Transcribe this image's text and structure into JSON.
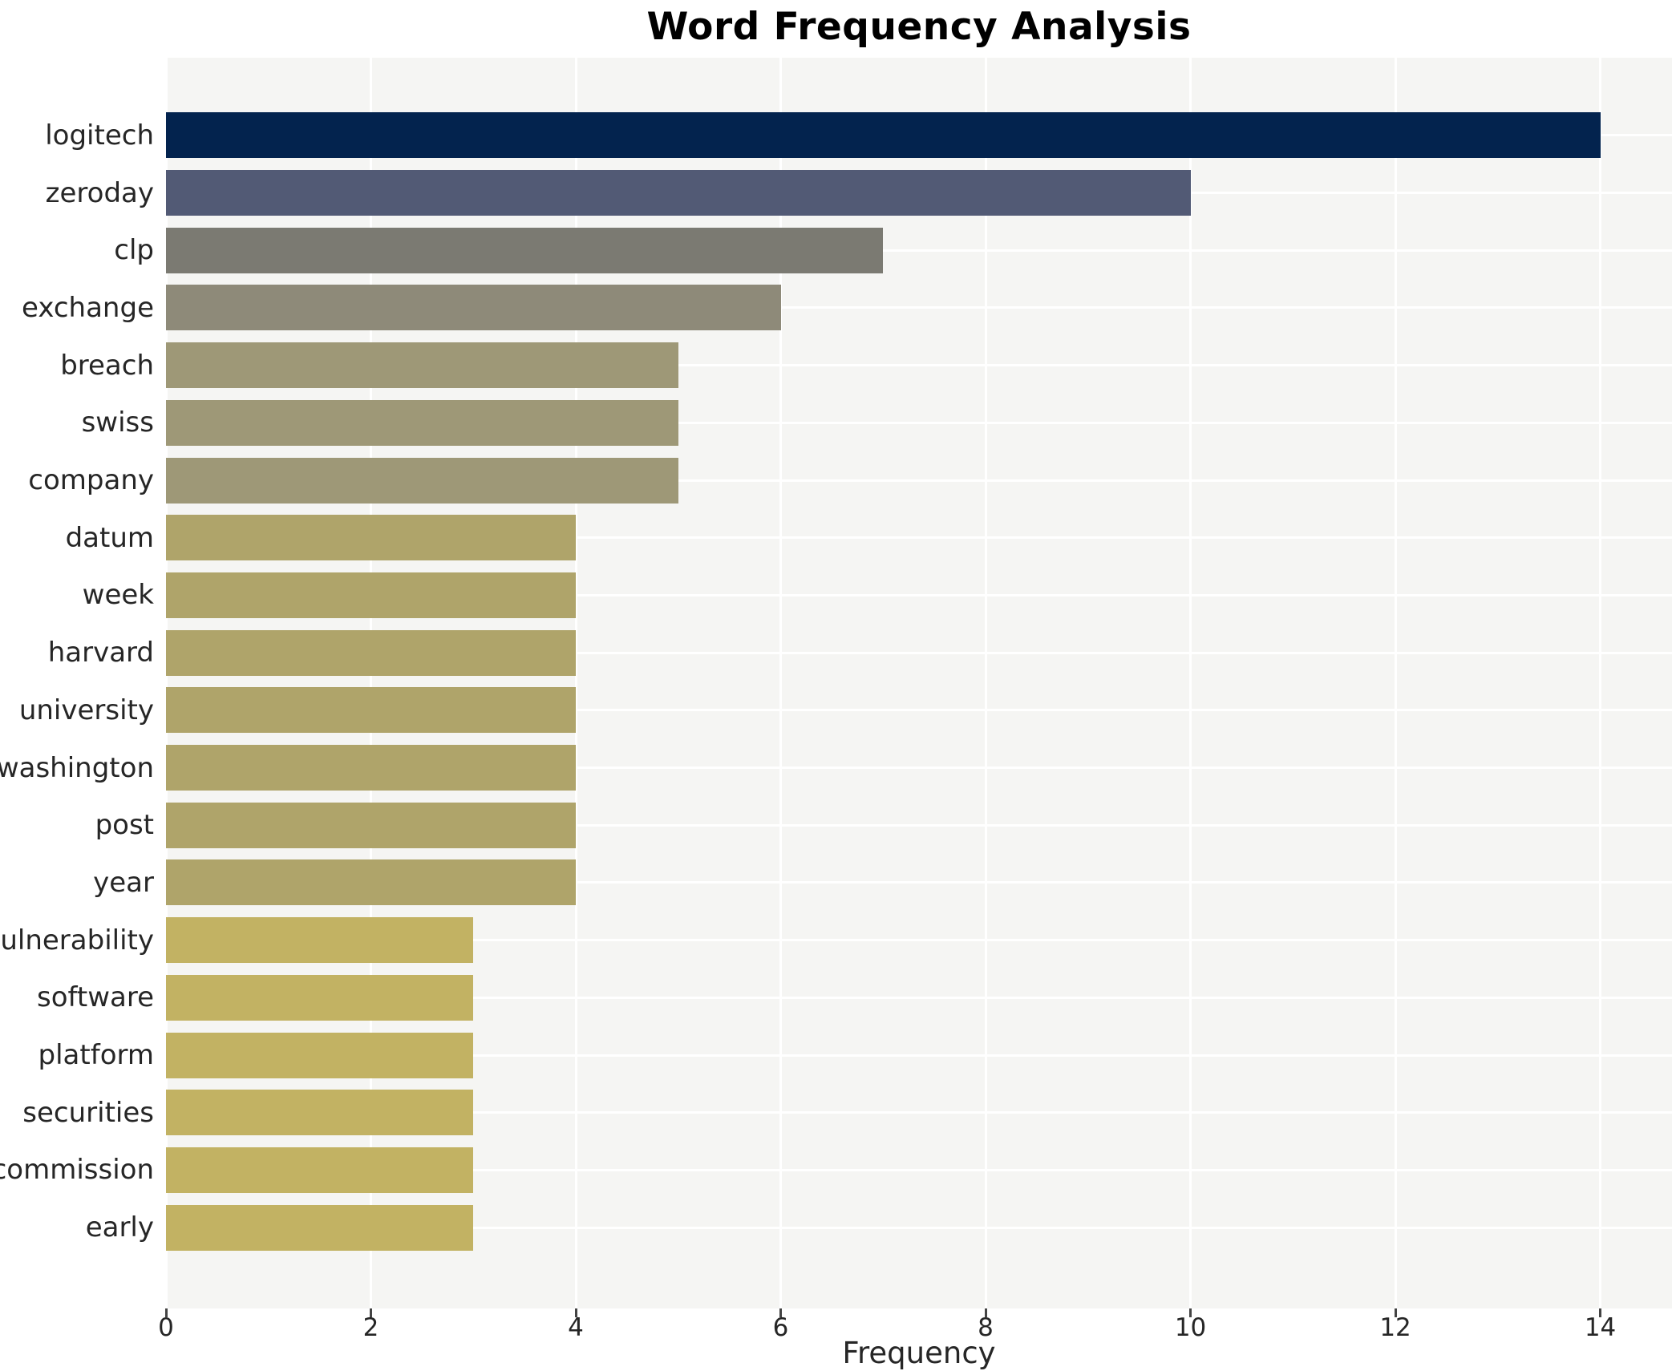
{
  "title": "Word Frequency Analysis",
  "chart_data": {
    "type": "bar",
    "orientation": "horizontal",
    "title": "Word Frequency Analysis",
    "xlabel": "Frequency",
    "ylabel": "",
    "categories": [
      "logitech",
      "zeroday",
      "clp",
      "exchange",
      "breach",
      "swiss",
      "company",
      "datum",
      "week",
      "harvard",
      "university",
      "washington",
      "post",
      "year",
      "vulnerability",
      "software",
      "platform",
      "securities",
      "commission",
      "early"
    ],
    "values": [
      14,
      10,
      7,
      6,
      5,
      5,
      5,
      4,
      4,
      4,
      4,
      4,
      4,
      4,
      3,
      3,
      3,
      3,
      3,
      3
    ],
    "bar_colors": [
      "#03234e",
      "#525a75",
      "#7b7a72",
      "#8e8a79",
      "#9e9877",
      "#9e9877",
      "#9e9877",
      "#afa46a",
      "#afa46a",
      "#afa46a",
      "#afa46a",
      "#afa46a",
      "#afa46a",
      "#afa46a",
      "#c2b263",
      "#c2b263",
      "#c2b263",
      "#c2b263",
      "#c2b263",
      "#c2b263"
    ],
    "xticks": [
      0,
      2,
      4,
      6,
      8,
      10,
      12,
      14
    ],
    "xlim": [
      0,
      14.7
    ],
    "grid": true,
    "legend": "none",
    "plot_bg": "#f5f5f3",
    "grid_color": "#ffffff",
    "text_color": "#262626"
  }
}
